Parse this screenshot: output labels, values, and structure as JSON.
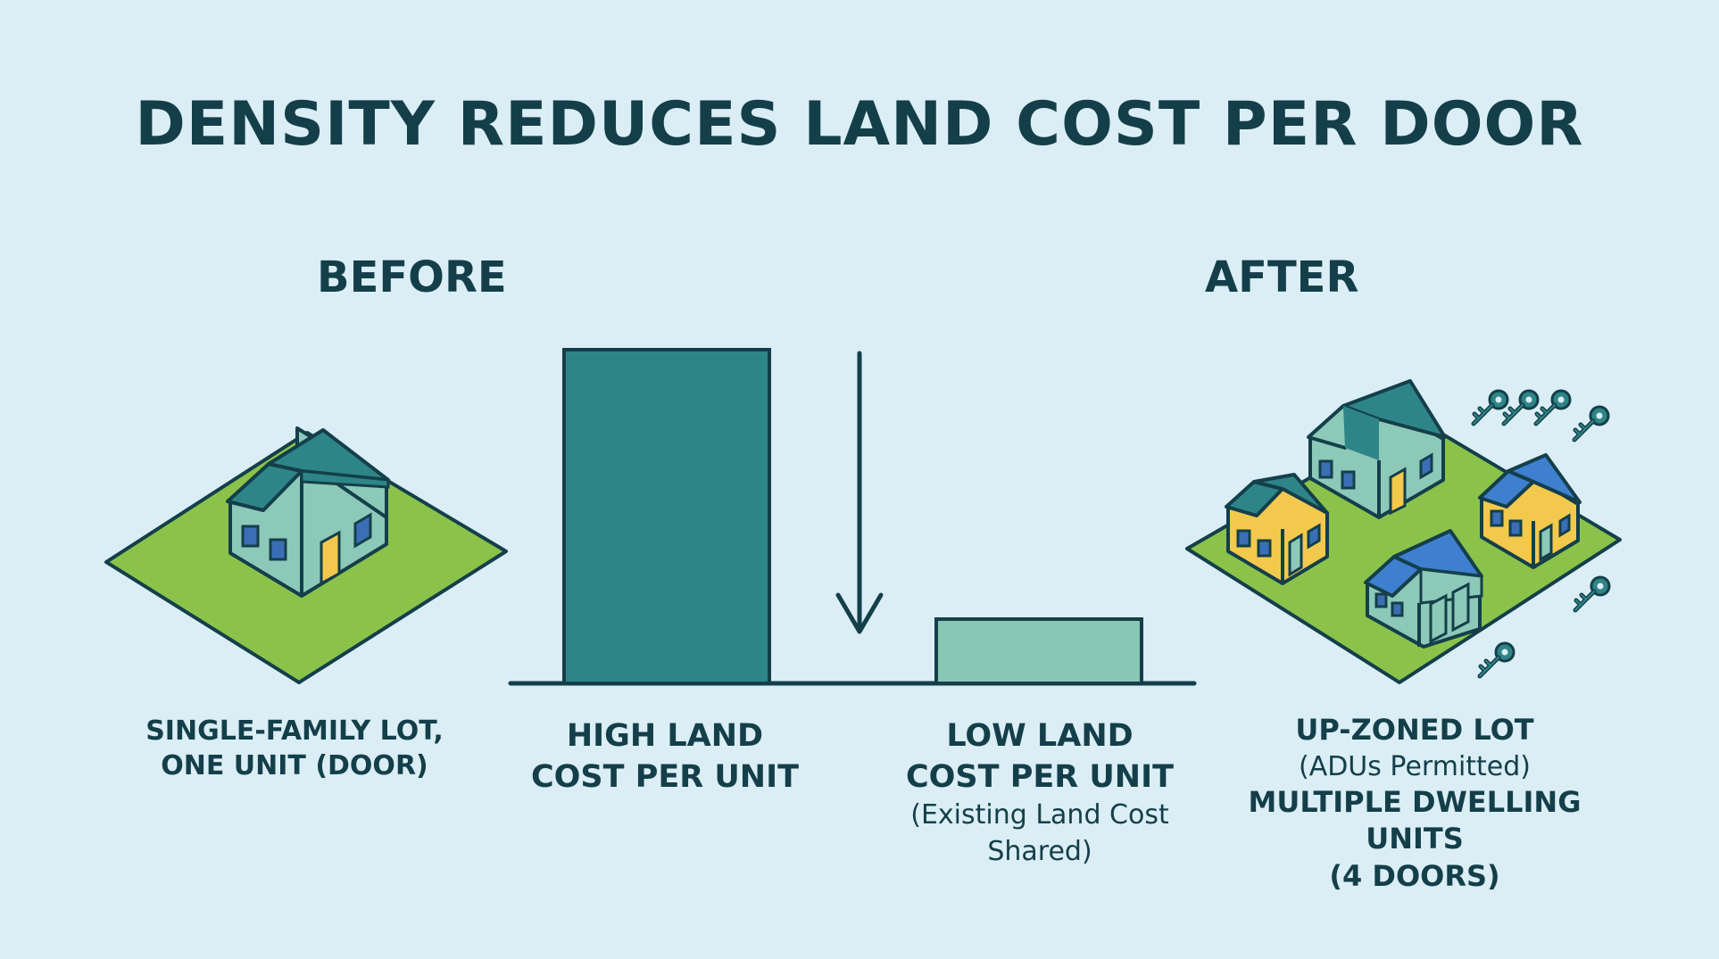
{
  "title": "DENSITY REDUCES LAND COST PER DOOR",
  "before_heading": "BEFORE",
  "after_heading": "AFTER",
  "single_lot": {
    "line1": "SINGLE-FAMILY LOT,",
    "line2": "ONE UNIT (DOOR)"
  },
  "high_cost": {
    "line1": "HIGH LAND",
    "line2": "COST PER UNIT"
  },
  "low_cost": {
    "line1": "LOW LAND",
    "line2": "COST PER UNIT",
    "note1": "(Existing Land Cost",
    "note2": "Shared)"
  },
  "upzoned_lot": {
    "line1": "UP-ZONED LOT",
    "line2": "(ADUs Permitted)",
    "line3": "MULTIPLE DWELLING UNITS",
    "line4": "(4 DOORS)"
  },
  "colors": {
    "background": "#dbeef5",
    "outline": "#143f4a",
    "high_bar": "#2e8587",
    "low_bar": "#88c7b4",
    "lawn": "#8bc34a",
    "house_teal": "#8cc9b8",
    "roof_teal": "#2e8587",
    "house_yellow": "#f2c94c",
    "roof_blue": "#3f7fcf",
    "window": "#3a6fb5",
    "door_yellow": "#f2c94c"
  },
  "icons": [
    "house-icon",
    "down-arrow-icon",
    "key-icon"
  ]
}
